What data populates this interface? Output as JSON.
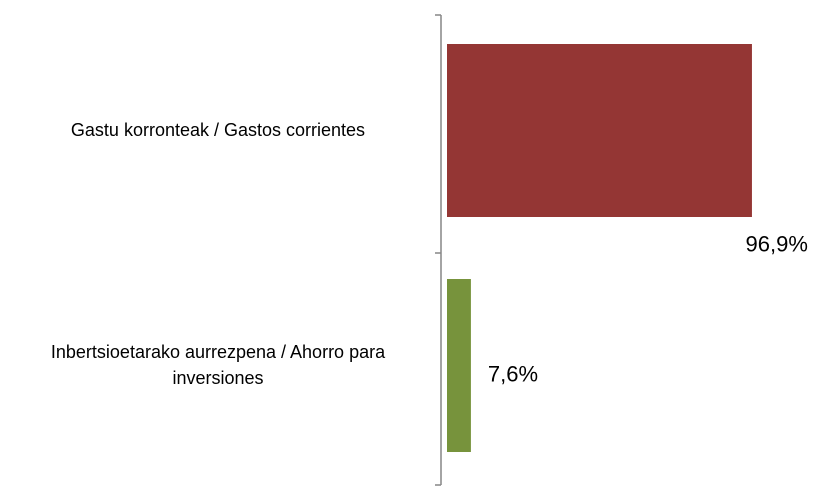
{
  "chart_data": {
    "type": "bar",
    "orientation": "horizontal",
    "categories": [
      "Gastu korronteak / Gastos corrientes",
      "Inbertsioetarako aurrezpena / Ahorro para inversiones"
    ],
    "values": [
      96.9,
      7.6
    ],
    "value_labels": [
      "96,9%",
      "7,6%"
    ],
    "colors": [
      "#943634",
      "#77933c"
    ]
  }
}
